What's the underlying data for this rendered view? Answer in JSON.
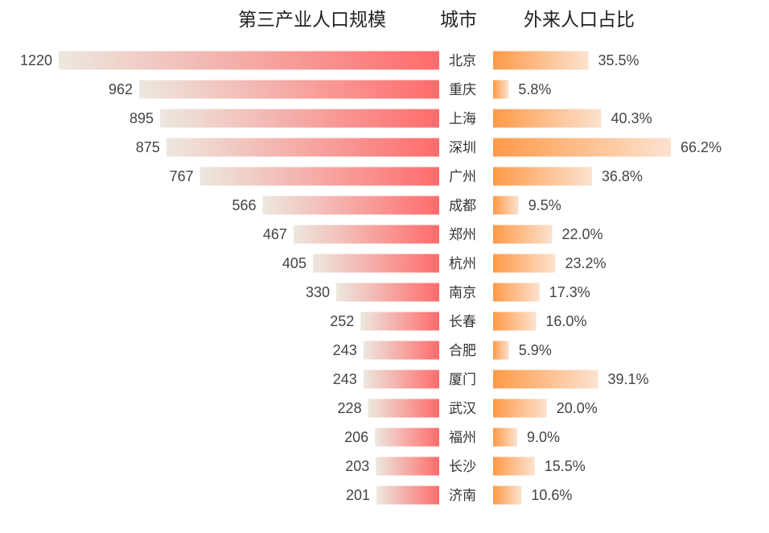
{
  "chart_data": {
    "type": "bar",
    "headers": {
      "left": "第三产业人口规模",
      "center": "城市",
      "right": "外来人口占比"
    },
    "categories": [
      "北京",
      "重庆",
      "上海",
      "深圳",
      "广州",
      "成都",
      "郑州",
      "杭州",
      "南京",
      "长春",
      "合肥",
      "厦门",
      "武汉",
      "福州",
      "长沙",
      "济南"
    ],
    "series": [
      {
        "name": "第三产业人口规模",
        "values": [
          1220,
          962,
          895,
          875,
          767,
          566,
          467,
          405,
          330,
          252,
          243,
          243,
          228,
          206,
          203,
          201
        ]
      },
      {
        "name": "外来人口占比",
        "values": [
          35.5,
          5.8,
          40.3,
          66.2,
          36.8,
          9.5,
          22.0,
          23.2,
          17.3,
          16.0,
          5.9,
          39.1,
          20.0,
          9.0,
          15.5,
          10.6
        ],
        "labels": [
          "35.5%",
          "5.8%",
          "40.3%",
          "66.2%",
          "36.8%",
          "9.5%",
          "22.0%",
          "23.2%",
          "17.3%",
          "16.0%",
          "5.9%",
          "39.1%",
          "20.0%",
          "9.0%",
          "15.5%",
          "10.6%"
        ]
      }
    ],
    "colors": {
      "left_start": "#ECE8DF",
      "left_end": "#FF6B6B",
      "right_start": "#FF9A48",
      "right_end": "#FCE2CF"
    }
  }
}
